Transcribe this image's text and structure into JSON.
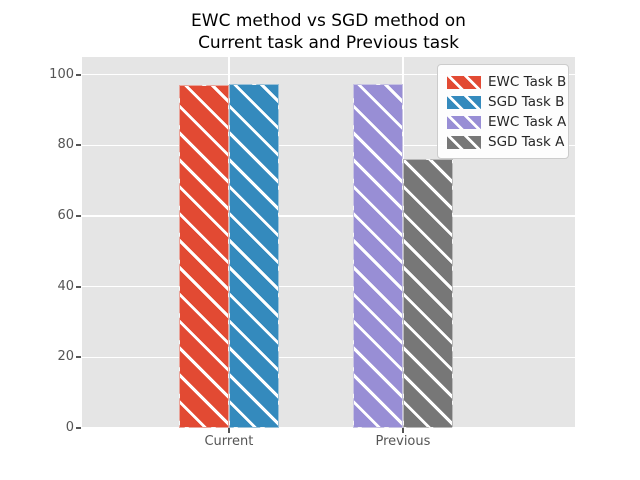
{
  "title": {
    "lines": [
      "EWC method vs SGD method on",
      "Current task and Previous task"
    ]
  },
  "chart_data": {
    "type": "bar",
    "title": "EWC method vs SGD method on\nCurrent task and Previous task",
    "categories": [
      "Current",
      "Previous"
    ],
    "series": [
      {
        "name": "EWC Task B",
        "color": "#E24A33",
        "values": [
          97.2,
          null
        ]
      },
      {
        "name": "SGD Task B",
        "color": "#348ABD",
        "values": [
          97.5,
          null
        ]
      },
      {
        "name": "EWC Task A",
        "color": "#988ED5",
        "values": [
          null,
          97.4
        ]
      },
      {
        "name": "SGD Task A",
        "color": "#777777",
        "values": [
          null,
          76.2
        ]
      }
    ],
    "xlabel": "",
    "ylabel": "",
    "ylim": [
      0,
      105
    ],
    "yticks": [
      0,
      20,
      40,
      60,
      80,
      100
    ],
    "grid": true,
    "hatch": "/",
    "legend_position": "upper right",
    "style": {
      "plot_background": "#E5E5E5",
      "figure_background": "#FFFFFF",
      "grid_color": "#FFFFFF",
      "tick_label_color": "#555555",
      "title_color": "#000000",
      "legend_text_color": "#262626",
      "legend_border_color": "#CCCCCC"
    }
  }
}
